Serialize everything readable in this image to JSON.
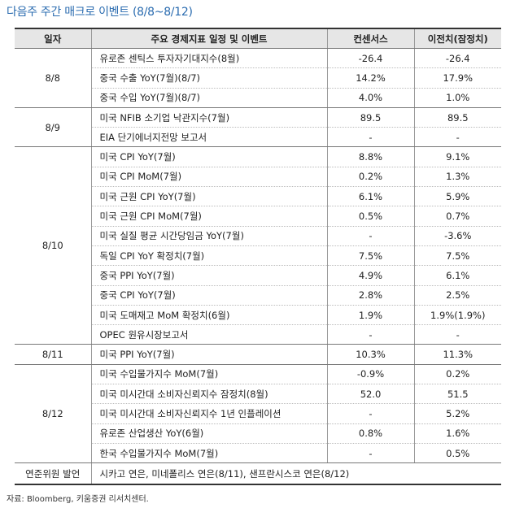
{
  "title": "다음주 주간 매크로 이벤트 (8/8~8/12)",
  "headers": [
    "일자",
    "주요 경제지표 일정 및 이벤트",
    "컨센서스",
    "이전치(잠정치)"
  ],
  "groups": [
    {
      "date": "8/8",
      "rows": [
        {
          "name": "유로존 센틱스 투자자기대지수(8월)",
          "consensus": "-26.4",
          "previous": "-26.4"
        },
        {
          "name": "중국 수출 YoY(7월)(8/7)",
          "consensus": "14.2%",
          "previous": "17.9%"
        },
        {
          "name": "중국 수입 YoY(7월)(8/7)",
          "consensus": "4.0%",
          "previous": "1.0%"
        }
      ]
    },
    {
      "date": "8/9",
      "rows": [
        {
          "name": "미국 NFIB 소기업 낙관지수(7월)",
          "consensus": "89.5",
          "previous": "89.5"
        },
        {
          "name": "EIA 단기에너지전망 보고서",
          "consensus": "-",
          "previous": "-"
        }
      ]
    },
    {
      "date": "8/10",
      "rows": [
        {
          "name": "미국 CPI YoY(7월)",
          "consensus": "8.8%",
          "previous": "9.1%"
        },
        {
          "name": "미국 CPI MoM(7월)",
          "consensus": "0.2%",
          "previous": "1.3%"
        },
        {
          "name": "미국 근원 CPI YoY(7월)",
          "consensus": "6.1%",
          "previous": "5.9%"
        },
        {
          "name": "미국 근원 CPI MoM(7월)",
          "consensus": "0.5%",
          "previous": "0.7%"
        },
        {
          "name": "미국 실질 평균 시간당임금 YoY(7월)",
          "consensus": "-",
          "previous": "-3.6%"
        },
        {
          "name": "독일 CPI YoY 확정치(7월)",
          "consensus": "7.5%",
          "previous": "7.5%"
        },
        {
          "name": "중국 PPI YoY(7월)",
          "consensus": "4.9%",
          "previous": "6.1%"
        },
        {
          "name": "중국 CPI YoY(7월)",
          "consensus": "2.8%",
          "previous": "2.5%"
        },
        {
          "name": "미국 도매재고 MoM 확정치(6월)",
          "consensus": "1.9%",
          "previous": "1.9%(1.9%)"
        },
        {
          "name": "OPEC 원유시장보고서",
          "consensus": "-",
          "previous": "-"
        }
      ]
    },
    {
      "date": "8/11",
      "rows": [
        {
          "name": "미국 PPI YoY(7월)",
          "consensus": "10.3%",
          "previous": "11.3%"
        }
      ]
    },
    {
      "date": "8/12",
      "rows": [
        {
          "name": "미국 수입물가지수 MoM(7월)",
          "consensus": "-0.9%",
          "previous": "0.2%"
        },
        {
          "name": "미국 미시간대 소비자신뢰지수 잠정치(8월)",
          "consensus": "52.0",
          "previous": "51.5"
        },
        {
          "name": "미국 미시간대 소비자신뢰지수 1년 인플레이션",
          "consensus": "-",
          "previous": "5.2%"
        },
        {
          "name": "유로존 산업생산 YoY(6월)",
          "consensus": "0.8%",
          "previous": "1.6%"
        },
        {
          "name": "한국 수입물가지수 MoM(7월)",
          "consensus": "-",
          "previous": "0.5%"
        }
      ]
    }
  ],
  "fed": {
    "label": "연준위원 발언",
    "text": "시카고 연은, 미네폴리스 연은(8/11), 샌프란시스코 연은(8/12)"
  },
  "source": "자료: Bloomberg, 키움증권 리서치센터."
}
